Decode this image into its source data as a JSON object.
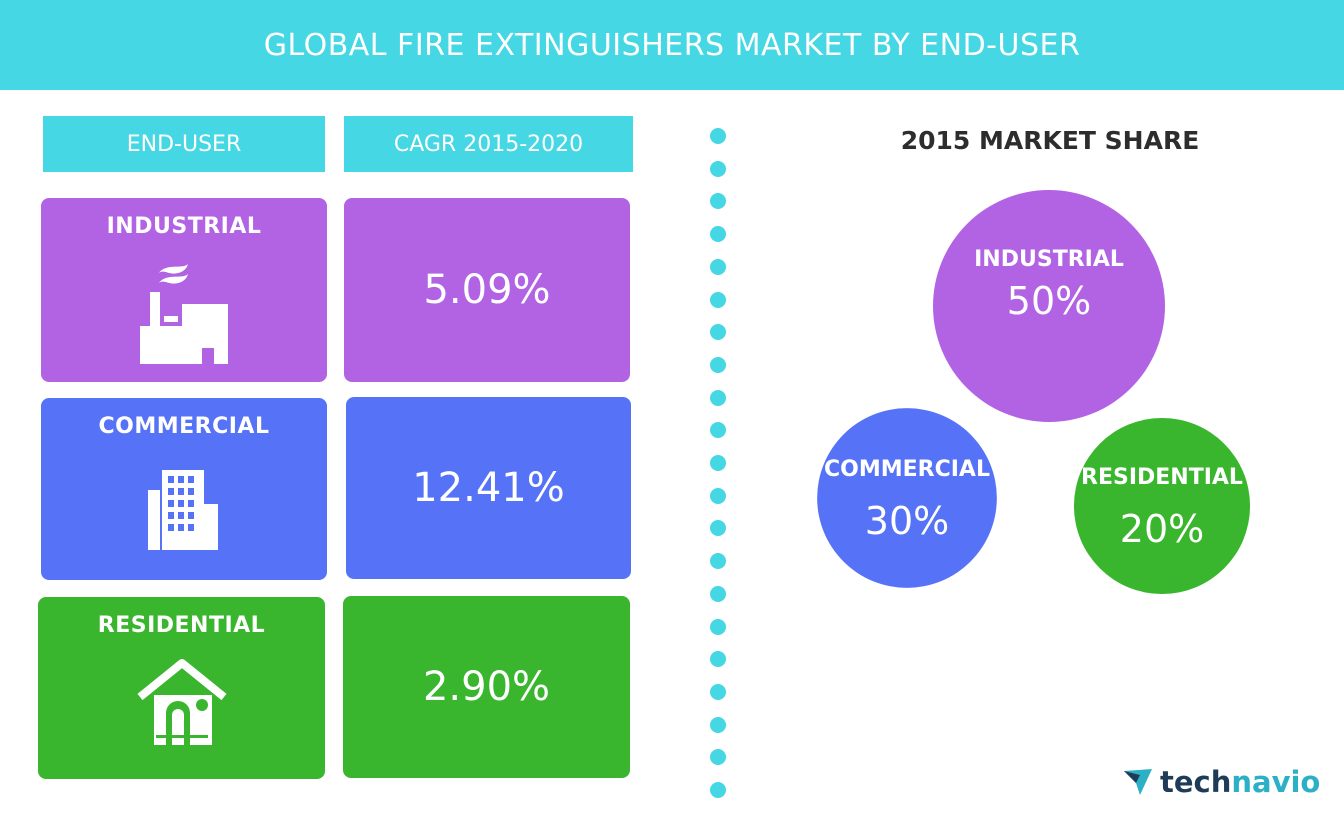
{
  "title": "GLOBAL FIRE EXTINGUISHERS MARKET BY END-USER",
  "table": {
    "header_end_user": "END-USER",
    "header_cagr": "CAGR 2015-2020",
    "rows": [
      {
        "label": "INDUSTRIAL",
        "cagr": "5.09%",
        "icon": "factory-icon",
        "color": "#b263e4"
      },
      {
        "label": "COMMERCIAL",
        "cagr": "12.41%",
        "icon": "office-building-icon",
        "color": "#5673f7"
      },
      {
        "label": "RESIDENTIAL",
        "cagr": "2.90%",
        "icon": "house-icon",
        "color": "#39b62d"
      }
    ]
  },
  "chart_data": {
    "type": "pie",
    "title": "2015 MARKET SHARE",
    "categories": [
      "INDUSTRIAL",
      "COMMERCIAL",
      "RESIDENTIAL"
    ],
    "values": [
      50,
      30,
      20
    ],
    "value_labels": [
      "50%",
      "30%",
      "20%"
    ],
    "colors": [
      "#b263e4",
      "#5673f7",
      "#39b62d"
    ]
  },
  "colors": {
    "accent": "#46d7e4"
  },
  "logo": {
    "part1": "tech",
    "part2": "navio",
    "icon": "technavio-logo-icon"
  }
}
